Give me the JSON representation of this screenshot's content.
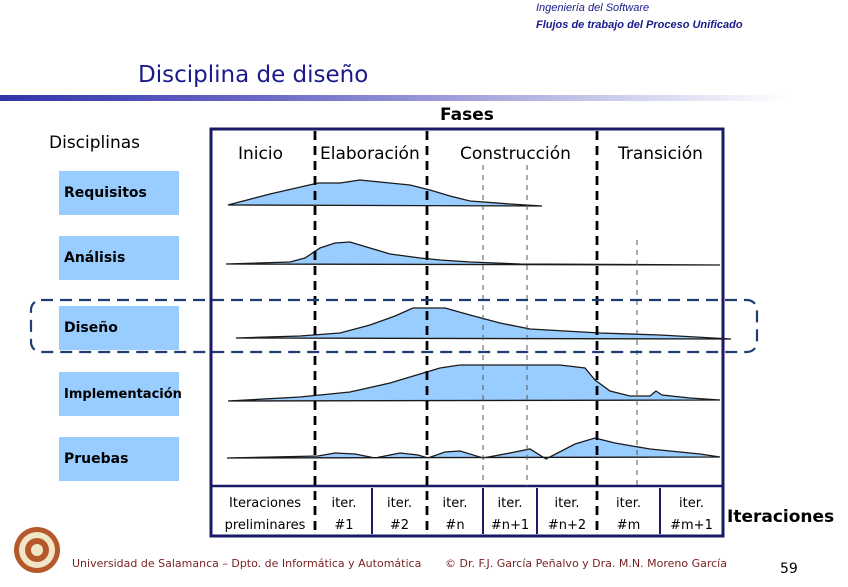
{
  "header": {
    "course": "Ingeniería del Software",
    "topic": "Flujos de trabajo del Proceso Unificado"
  },
  "title": "Disciplina de diseño",
  "diagram": {
    "fases_label": "Fases",
    "disciplinas_label": "Disciplinas",
    "phases": [
      "Inicio",
      "Elaboración",
      "Construcción",
      "Transición"
    ],
    "disciplines": [
      "Requisitos",
      "Análisis",
      "Diseño",
      "Implementación",
      "Pruebas"
    ],
    "highlighted_discipline": "Diseño",
    "iterations": [
      {
        "line1": "Iteraciones",
        "line2": "preliminares"
      },
      {
        "line1": "iter.",
        "line2": "#1"
      },
      {
        "line1": "iter.",
        "line2": "#2"
      },
      {
        "line1": "iter.",
        "line2": "#n"
      },
      {
        "line1": "iter.",
        "line2": "#n+1"
      },
      {
        "line1": "iter.",
        "line2": "#n+2"
      },
      {
        "line1": "iter.",
        "line2": "#m"
      },
      {
        "line1": "iter.",
        "line2": "#m+1"
      }
    ],
    "iteraciones_label": "Iteraciones",
    "colors": {
      "curve_fill": "#99ccff",
      "discipline_box": "#99ccff",
      "frame": "#1a1a66",
      "highlight_border": "#1f3d73"
    }
  },
  "footer": {
    "university": "Universidad de Salamanca – Dpto. de Informática y Automática",
    "authors": "© Dr. F.J. García Peñalvo y Dra. M.N. Moreno García",
    "page_number": "59",
    "seal_icon": "university-seal-icon"
  }
}
